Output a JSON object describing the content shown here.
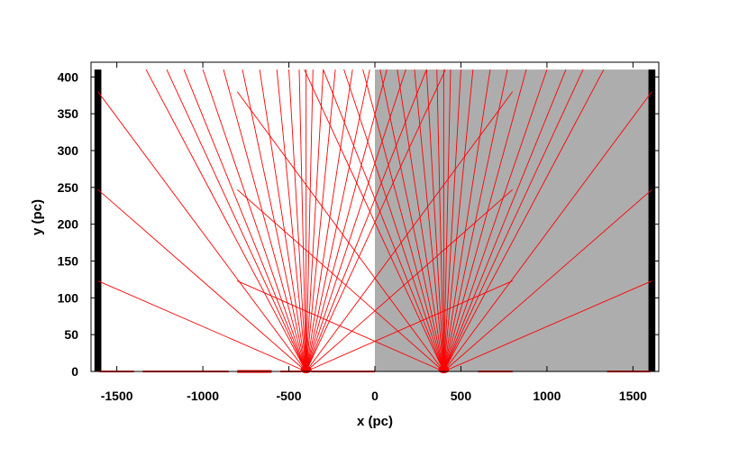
{
  "chart_data": {
    "type": "line",
    "xlabel": "x (pc)",
    "ylabel": "y (pc)",
    "xlim": [
      -1650,
      1650
    ],
    "ylim": [
      0,
      420
    ],
    "x_ticks": [
      -1500,
      -1000,
      -500,
      0,
      500,
      1000,
      1500
    ],
    "x_tick_labels": [
      "-1500",
      "-1000",
      "-500",
      "0",
      "500",
      "1000",
      "1500"
    ],
    "y_ticks": [
      0,
      50,
      100,
      150,
      200,
      250,
      300,
      350,
      400
    ],
    "y_tick_labels": [
      "0",
      "50",
      "100",
      "150",
      "200",
      "250",
      "300",
      "350",
      "400"
    ],
    "grid": false,
    "legend": "none",
    "colors": {
      "rays": "#ff0000",
      "shaded_region": "#adadad",
      "boundary_walls": "#000000"
    },
    "shaded_region": {
      "x": [
        0,
        1600
      ],
      "y": [
        0,
        410
      ]
    },
    "boundary_walls": [
      {
        "x": [
          -1630,
          -1590
        ],
        "y": [
          0,
          410
        ]
      },
      {
        "x": [
          1590,
          1630
        ],
        "y": [
          0,
          410
        ]
      }
    ],
    "sources": [
      {
        "x": -400,
        "y": 0
      },
      {
        "x": 400,
        "y": 0
      }
    ],
    "rays": [
      {
        "from": [
          -400,
          0
        ],
        "to": [
          -1610,
          380
        ]
      },
      {
        "from": [
          -400,
          0
        ],
        "to": [
          -1610,
          247
        ]
      },
      {
        "from": [
          -400,
          0
        ],
        "to": [
          -1610,
          123
        ]
      },
      {
        "from": [
          -400,
          0
        ],
        "to": [
          -1330,
          410
        ]
      },
      {
        "from": [
          -400,
          0
        ],
        "to": [
          -1210,
          410
        ]
      },
      {
        "from": [
          -400,
          0
        ],
        "to": [
          -1110,
          410
        ]
      },
      {
        "from": [
          -400,
          0
        ],
        "to": [
          -1000,
          410
        ]
      },
      {
        "from": [
          -400,
          0
        ],
        "to": [
          -880,
          410
        ]
      },
      {
        "from": [
          -400,
          0
        ],
        "to": [
          -770,
          410
        ]
      },
      {
        "from": [
          -400,
          0
        ],
        "to": [
          -670,
          410
        ]
      },
      {
        "from": [
          -400,
          0
        ],
        "to": [
          -570,
          410
        ]
      },
      {
        "from": [
          -400,
          0
        ],
        "to": [
          -500,
          410
        ]
      },
      {
        "from": [
          -400,
          0
        ],
        "to": [
          -440,
          410
        ]
      },
      {
        "from": [
          -400,
          0
        ],
        "to": [
          -400,
          410
        ]
      },
      {
        "from": [
          -400,
          0
        ],
        "to": [
          -360,
          410
        ]
      },
      {
        "from": [
          -400,
          0
        ],
        "to": [
          -300,
          410
        ]
      },
      {
        "from": [
          -400,
          0
        ],
        "to": [
          -230,
          410
        ]
      },
      {
        "from": [
          -400,
          0
        ],
        "to": [
          -130,
          410
        ]
      },
      {
        "from": [
          -400,
          0
        ],
        "to": [
          -30,
          410
        ]
      },
      {
        "from": [
          -400,
          0
        ],
        "to": [
          70,
          410
        ]
      },
      {
        "from": [
          -400,
          0
        ],
        "to": [
          180,
          410
        ]
      },
      {
        "from": [
          -400,
          0
        ],
        "to": [
          300,
          410
        ]
      },
      {
        "from": [
          -400,
          0
        ],
        "to": [
          410,
          410
        ]
      },
      {
        "from": [
          -400,
          0
        ],
        "to": [
          800,
          380
        ]
      },
      {
        "from": [
          -400,
          0
        ],
        "to": [
          800,
          247
        ]
      },
      {
        "from": [
          -400,
          0
        ],
        "to": [
          800,
          123
        ]
      },
      {
        "from": [
          400,
          0
        ],
        "to": [
          1610,
          380
        ]
      },
      {
        "from": [
          400,
          0
        ],
        "to": [
          1610,
          247
        ]
      },
      {
        "from": [
          400,
          0
        ],
        "to": [
          1610,
          123
        ]
      },
      {
        "from": [
          400,
          0
        ],
        "to": [
          1330,
          410
        ]
      },
      {
        "from": [
          400,
          0
        ],
        "to": [
          1210,
          410
        ]
      },
      {
        "from": [
          400,
          0
        ],
        "to": [
          1110,
          410
        ]
      },
      {
        "from": [
          400,
          0
        ],
        "to": [
          1000,
          410
        ]
      },
      {
        "from": [
          400,
          0
        ],
        "to": [
          880,
          410
        ]
      },
      {
        "from": [
          400,
          0
        ],
        "to": [
          770,
          410
        ]
      },
      {
        "from": [
          400,
          0
        ],
        "to": [
          670,
          410
        ]
      },
      {
        "from": [
          400,
          0
        ],
        "to": [
          570,
          410
        ]
      },
      {
        "from": [
          400,
          0
        ],
        "to": [
          500,
          410
        ]
      },
      {
        "from": [
          400,
          0
        ],
        "to": [
          440,
          410
        ]
      },
      {
        "from": [
          400,
          0
        ],
        "to": [
          400,
          410
        ]
      },
      {
        "from": [
          400,
          0
        ],
        "to": [
          360,
          410
        ]
      },
      {
        "from": [
          400,
          0
        ],
        "to": [
          300,
          410
        ]
      },
      {
        "from": [
          400,
          0
        ],
        "to": [
          230,
          410
        ]
      },
      {
        "from": [
          400,
          0
        ],
        "to": [
          130,
          410
        ]
      },
      {
        "from": [
          400,
          0
        ],
        "to": [
          30,
          410
        ]
      },
      {
        "from": [
          400,
          0
        ],
        "to": [
          -70,
          410
        ]
      },
      {
        "from": [
          400,
          0
        ],
        "to": [
          -180,
          410
        ]
      },
      {
        "from": [
          400,
          0
        ],
        "to": [
          -300,
          410
        ]
      },
      {
        "from": [
          400,
          0
        ],
        "to": [
          -410,
          410
        ]
      },
      {
        "from": [
          400,
          0
        ],
        "to": [
          -800,
          380
        ]
      },
      {
        "from": [
          400,
          0
        ],
        "to": [
          -800,
          247
        ]
      },
      {
        "from": [
          400,
          0
        ],
        "to": [
          -800,
          123
        ]
      }
    ],
    "floor_segments": [
      {
        "x": [
          -1600,
          -1400
        ],
        "y": 1
      },
      {
        "x": [
          -1350,
          -850
        ],
        "y": 1
      },
      {
        "x": [
          -800,
          -600
        ],
        "y": 2
      },
      {
        "x": [
          -550,
          -430
        ],
        "y": 1
      },
      {
        "x": [
          -370,
          0
        ],
        "y": 1
      },
      {
        "x": [
          600,
          800
        ],
        "y": 1
      },
      {
        "x": [
          1350,
          1600
        ],
        "y": 1
      }
    ]
  }
}
